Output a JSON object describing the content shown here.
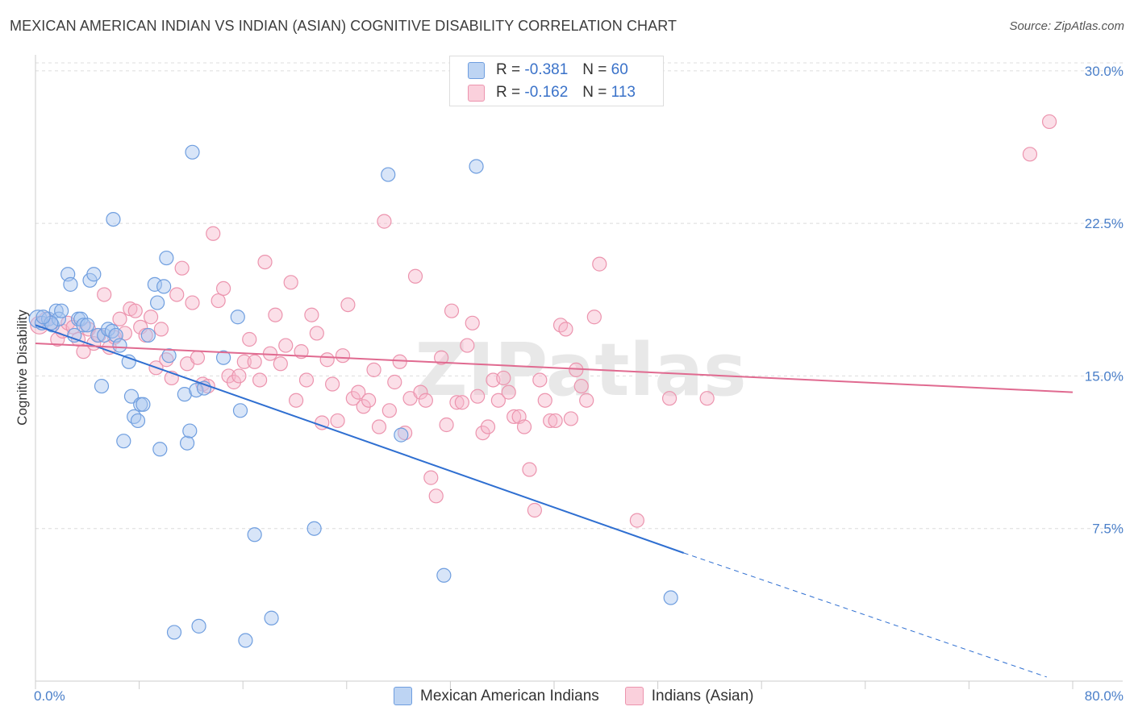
{
  "title": "MEXICAN AMERICAN INDIAN VS INDIAN (ASIAN) COGNITIVE DISABILITY CORRELATION CHART",
  "source": "Source: ZipAtlas.com",
  "watermark": "ZIPatlas",
  "legend": {
    "r_label": "R =",
    "n_label": "N =",
    "rows": [
      {
        "r": "-0.381",
        "n": "60",
        "color": "#a9c6ef"
      },
      {
        "r": "-0.162",
        "n": "113",
        "color": "#f7b8cb"
      }
    ]
  },
  "bottom_legend": [
    "Mexican American Indians",
    "Indians (Asian)"
  ],
  "chart_data": {
    "type": "scatter",
    "title": "MEXICAN AMERICAN INDIAN VS INDIAN (ASIAN) COGNITIVE DISABILITY CORRELATION CHART",
    "xlabel": "",
    "ylabel": "Cognitive Disability",
    "xlim": [
      0,
      80
    ],
    "ylim": [
      0,
      31.5
    ],
    "x_tick_labels": [
      "0.0%",
      "80.0%"
    ],
    "y_ticks": [
      7.5,
      15.0,
      22.5,
      30.0
    ],
    "y_tick_labels": [
      "7.5%",
      "15.0%",
      "22.5%",
      "30.0%"
    ],
    "grid": true,
    "legend_position": "top-center",
    "series": [
      {
        "name": "Mexican American Indians",
        "color": "#6fa1e0",
        "line_color": "#2f6fd1",
        "trend": {
          "x0": 0.0,
          "y0": 17.5,
          "x1": 50.0,
          "y1": 6.3,
          "dash_to_x": 78.0,
          "dash_to_y": 0.2
        },
        "points": [
          [
            0.2,
            17.8
          ],
          [
            0.5,
            17.6
          ],
          [
            1.0,
            17.8
          ],
          [
            1.3,
            17.5
          ],
          [
            1.6,
            18.2
          ],
          [
            1.8,
            17.8
          ],
          [
            2.5,
            20.0
          ],
          [
            2.7,
            19.5
          ],
          [
            3.0,
            17.0
          ],
          [
            3.3,
            17.8
          ],
          [
            3.5,
            17.8
          ],
          [
            3.7,
            17.5
          ],
          [
            4.2,
            19.7
          ],
          [
            4.5,
            20.0
          ],
          [
            4.8,
            17.0
          ],
          [
            5.1,
            14.5
          ],
          [
            5.3,
            17.0
          ],
          [
            5.6,
            17.3
          ],
          [
            5.9,
            17.2
          ],
          [
            6.2,
            17.0
          ],
          [
            6.5,
            16.5
          ],
          [
            6.8,
            11.8
          ],
          [
            7.2,
            15.7
          ],
          [
            7.4,
            14.0
          ],
          [
            7.6,
            13.0
          ],
          [
            7.9,
            12.8
          ],
          [
            8.1,
            13.6
          ],
          [
            8.3,
            13.6
          ],
          [
            8.7,
            17.0
          ],
          [
            9.2,
            19.5
          ],
          [
            9.4,
            18.6
          ],
          [
            9.6,
            11.4
          ],
          [
            9.9,
            19.4
          ],
          [
            10.1,
            20.8
          ],
          [
            10.3,
            16.0
          ],
          [
            11.5,
            14.1
          ],
          [
            11.7,
            11.7
          ],
          [
            11.9,
            12.3
          ],
          [
            12.1,
            26.0
          ],
          [
            12.4,
            14.3
          ],
          [
            12.6,
            2.7
          ],
          [
            13.0,
            14.4
          ],
          [
            14.5,
            15.9
          ],
          [
            15.6,
            17.9
          ],
          [
            15.8,
            13.3
          ],
          [
            16.9,
            7.2
          ],
          [
            18.2,
            3.1
          ],
          [
            21.5,
            7.5
          ],
          [
            27.2,
            24.9
          ],
          [
            28.2,
            12.1
          ],
          [
            31.5,
            5.2
          ],
          [
            34.0,
            25.3
          ],
          [
            49.0,
            4.1
          ],
          [
            10.7,
            2.4
          ],
          [
            16.2,
            2.0
          ],
          [
            6.0,
            22.7
          ],
          [
            2.0,
            18.2
          ],
          [
            1.2,
            17.6
          ],
          [
            4.0,
            17.5
          ],
          [
            0.6,
            17.9
          ]
        ]
      },
      {
        "name": "Indians (Asian)",
        "color": "#f4a6bd",
        "line_color": "#e06a90",
        "trend": {
          "x0": 0.0,
          "y0": 16.6,
          "x1": 80.0,
          "y1": 14.2
        },
        "points": [
          [
            0.3,
            17.5
          ],
          [
            0.8,
            17.8
          ],
          [
            1.2,
            17.6
          ],
          [
            1.7,
            16.8
          ],
          [
            2.1,
            17.2
          ],
          [
            2.5,
            17.6
          ],
          [
            2.9,
            17.4
          ],
          [
            3.3,
            16.8
          ],
          [
            3.7,
            16.2
          ],
          [
            4.1,
            17.3
          ],
          [
            4.5,
            16.6
          ],
          [
            4.9,
            17.0
          ],
          [
            5.3,
            19.0
          ],
          [
            5.7,
            16.4
          ],
          [
            6.1,
            16.9
          ],
          [
            6.5,
            17.8
          ],
          [
            6.9,
            17.1
          ],
          [
            7.3,
            18.3
          ],
          [
            7.7,
            18.2
          ],
          [
            8.1,
            17.4
          ],
          [
            8.5,
            17.0
          ],
          [
            8.9,
            17.9
          ],
          [
            9.3,
            15.4
          ],
          [
            9.7,
            17.3
          ],
          [
            10.1,
            15.8
          ],
          [
            10.5,
            14.9
          ],
          [
            10.9,
            19.0
          ],
          [
            11.3,
            20.3
          ],
          [
            11.7,
            15.6
          ],
          [
            12.1,
            18.6
          ],
          [
            12.5,
            15.9
          ],
          [
            12.9,
            14.6
          ],
          [
            13.3,
            14.5
          ],
          [
            13.7,
            22.0
          ],
          [
            14.1,
            18.7
          ],
          [
            14.5,
            19.3
          ],
          [
            14.9,
            15.0
          ],
          [
            15.3,
            14.7
          ],
          [
            15.7,
            15.0
          ],
          [
            16.1,
            15.7
          ],
          [
            16.5,
            16.8
          ],
          [
            16.9,
            15.7
          ],
          [
            17.3,
            14.8
          ],
          [
            17.7,
            20.6
          ],
          [
            18.1,
            16.1
          ],
          [
            18.5,
            18.0
          ],
          [
            18.9,
            15.6
          ],
          [
            19.3,
            16.5
          ],
          [
            19.7,
            19.6
          ],
          [
            20.1,
            13.8
          ],
          [
            20.5,
            16.2
          ],
          [
            20.9,
            14.8
          ],
          [
            21.3,
            18.0
          ],
          [
            21.7,
            17.1
          ],
          [
            22.1,
            12.7
          ],
          [
            22.5,
            15.8
          ],
          [
            22.9,
            14.6
          ],
          [
            23.3,
            12.8
          ],
          [
            23.7,
            16.0
          ],
          [
            24.1,
            18.5
          ],
          [
            24.5,
            13.9
          ],
          [
            24.9,
            14.2
          ],
          [
            25.3,
            13.5
          ],
          [
            25.7,
            13.8
          ],
          [
            26.1,
            15.3
          ],
          [
            26.5,
            12.5
          ],
          [
            26.9,
            22.6
          ],
          [
            27.3,
            13.3
          ],
          [
            27.7,
            14.7
          ],
          [
            28.1,
            15.7
          ],
          [
            28.5,
            12.2
          ],
          [
            28.9,
            13.9
          ],
          [
            29.3,
            19.9
          ],
          [
            29.7,
            14.2
          ],
          [
            30.1,
            13.8
          ],
          [
            30.5,
            10.0
          ],
          [
            30.9,
            9.1
          ],
          [
            31.3,
            15.9
          ],
          [
            31.7,
            12.6
          ],
          [
            32.1,
            18.2
          ],
          [
            32.5,
            13.7
          ],
          [
            32.9,
            13.7
          ],
          [
            33.3,
            16.5
          ],
          [
            33.7,
            17.6
          ],
          [
            34.1,
            14.0
          ],
          [
            34.5,
            12.2
          ],
          [
            34.9,
            12.5
          ],
          [
            35.3,
            14.8
          ],
          [
            35.7,
            13.8
          ],
          [
            36.1,
            14.9
          ],
          [
            36.5,
            14.2
          ],
          [
            36.9,
            13.0
          ],
          [
            37.3,
            13.0
          ],
          [
            37.7,
            12.5
          ],
          [
            38.1,
            10.4
          ],
          [
            38.5,
            8.4
          ],
          [
            38.9,
            14.8
          ],
          [
            39.3,
            13.8
          ],
          [
            39.7,
            12.8
          ],
          [
            40.1,
            12.8
          ],
          [
            40.5,
            17.5
          ],
          [
            40.9,
            17.3
          ],
          [
            41.3,
            12.9
          ],
          [
            41.7,
            15.3
          ],
          [
            42.1,
            14.5
          ],
          [
            42.5,
            13.8
          ],
          [
            43.1,
            17.9
          ],
          [
            43.5,
            20.5
          ],
          [
            46.4,
            7.9
          ],
          [
            48.9,
            13.9
          ],
          [
            51.8,
            13.9
          ],
          [
            76.7,
            25.9
          ],
          [
            78.2,
            27.5
          ]
        ]
      }
    ]
  }
}
